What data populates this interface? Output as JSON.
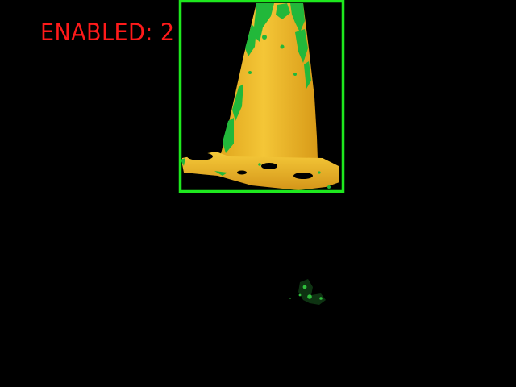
{
  "status": {
    "label": "ENABLED:",
    "count": "2"
  },
  "colors": {
    "background": "#000000",
    "status_text": "#ff1a1a",
    "detection_box": "#1ee81e",
    "object_fill": "#f2c12e",
    "object_edge_noise": "#22b83a"
  },
  "detection": {
    "object_icon": "traffic-cone-icon"
  }
}
